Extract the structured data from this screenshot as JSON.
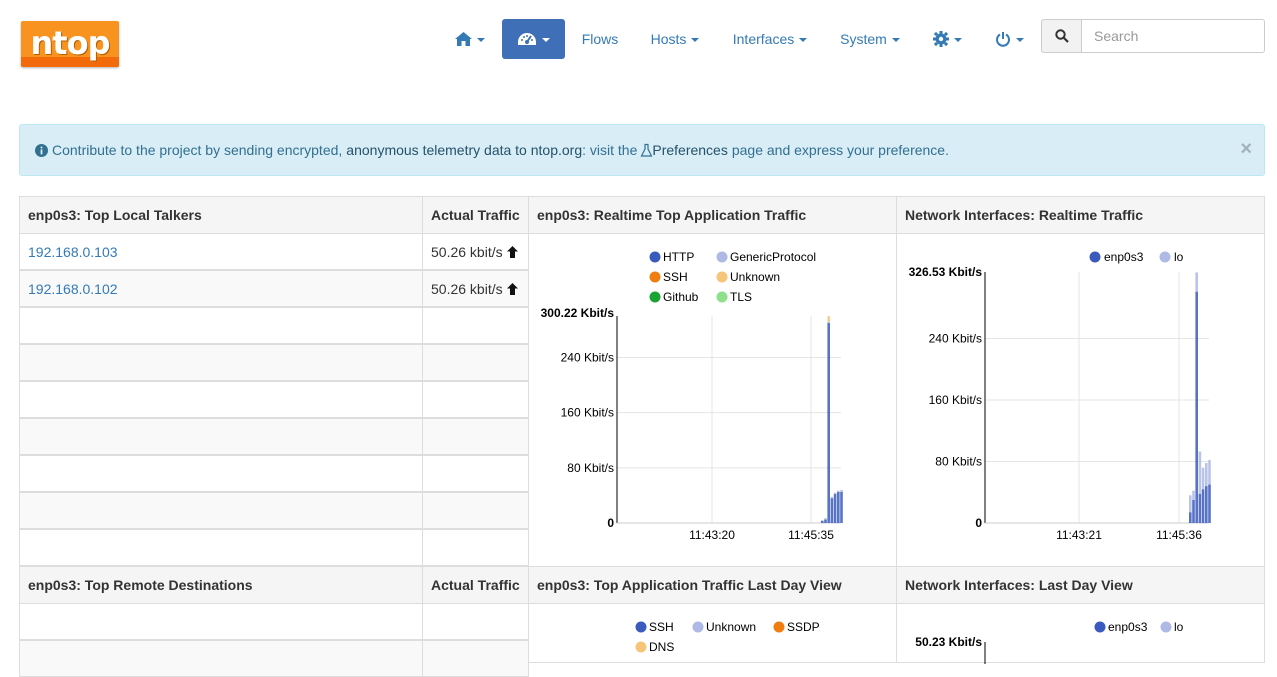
{
  "logo": {
    "text": "ntop"
  },
  "nav": {
    "flows": "Flows",
    "hosts": "Hosts",
    "interfaces": "Interfaces",
    "system": "System",
    "search_placeholder": "Search"
  },
  "alert": {
    "text_before": "Contribute to the project by sending encrypted,",
    "link1": "anonymous telemetry data to ntop.org",
    "text_mid": ": visit the",
    "link2": "Preferences",
    "text_after": "page and express your preference.",
    "close": "×"
  },
  "top_local": {
    "header": "enp0s3: Top Local Talkers",
    "traffic_header": "Actual Traffic",
    "rows": [
      {
        "host": "192.168.0.103",
        "traffic": "50.26 kbit/s"
      },
      {
        "host": "192.168.0.102",
        "traffic": "50.26 kbit/s"
      }
    ]
  },
  "top_remote": {
    "header": "enp0s3: Top Remote Destinations",
    "traffic_header": "Actual Traffic"
  },
  "app_realtime": {
    "header": "enp0s3: Realtime Top Application Traffic"
  },
  "iface_realtime": {
    "header": "Network Interfaces: Realtime Traffic"
  },
  "app_lastday": {
    "header": "enp0s3: Top Application Traffic Last Day View"
  },
  "iface_lastday": {
    "header": "Network Interfaces: Last Day View"
  },
  "chart_data": [
    {
      "type": "bar",
      "name": "app_realtime",
      "legend": [
        {
          "name": "HTTP",
          "color": "#3a5bbd"
        },
        {
          "name": "GenericProtocol",
          "color": "#aeb9e6"
        },
        {
          "name": "SSH",
          "color": "#f07d10"
        },
        {
          "name": "Unknown",
          "color": "#f7c57a"
        },
        {
          "name": "Github",
          "color": "#1aa332"
        },
        {
          "name": "TLS",
          "color": "#8ee08a"
        }
      ],
      "ylim": [
        0,
        300.22
      ],
      "yticks": [
        0,
        80,
        160,
        240
      ],
      "ytick_labels": [
        "0",
        "80 Kbit/s",
        "160 Kbit/s",
        "240 Kbit/s"
      ],
      "ymax_label": "300.22 Kbit/s",
      "xtick_labels": [
        "11:43:20",
        "11:45:35"
      ],
      "bars": [
        {
          "HTTP": 3,
          "GenericProtocol": 1
        },
        {
          "HTTP": 5,
          "GenericProtocol": 2
        },
        {
          "HTTP": 290,
          "GenericProtocol": 2,
          "Unknown": 8
        },
        {
          "HTTP": 36,
          "GenericProtocol": 2
        },
        {
          "HTTP": 42,
          "GenericProtocol": 2
        },
        {
          "HTTP": 45,
          "GenericProtocol": 2
        },
        {
          "HTTP": 45,
          "GenericProtocol": 3
        }
      ]
    },
    {
      "type": "bar",
      "name": "iface_realtime",
      "legend": [
        {
          "name": "enp0s3",
          "color": "#3a5bbd"
        },
        {
          "name": "lo",
          "color": "#aeb9e6"
        }
      ],
      "ylim": [
        0,
        326.53
      ],
      "yticks": [
        0,
        80,
        160,
        240
      ],
      "ytick_labels": [
        "0",
        "80 Kbit/s",
        "160 Kbit/s",
        "240 Kbit/s"
      ],
      "ymax_label": "326.53 Kbit/s",
      "xtick_labels": [
        "11:43:21",
        "11:45:36"
      ],
      "bars": [
        {
          "enp0s3": 14,
          "lo": 22
        },
        {
          "enp0s3": 30,
          "lo": 12
        },
        {
          "enp0s3": 301,
          "lo": 25
        },
        {
          "enp0s3": 38,
          "lo": 55
        },
        {
          "enp0s3": 44,
          "lo": 28
        },
        {
          "enp0s3": 48,
          "lo": 30
        },
        {
          "enp0s3": 50,
          "lo": 32
        }
      ]
    },
    {
      "type": "bar",
      "name": "app_lastday",
      "legend": [
        {
          "name": "SSH",
          "color": "#3a5bbd"
        },
        {
          "name": "Unknown",
          "color": "#aeb9e6"
        },
        {
          "name": "SSDP",
          "color": "#f07d10"
        },
        {
          "name": "DNS",
          "color": "#f7c57a"
        }
      ]
    },
    {
      "type": "bar",
      "name": "iface_lastday",
      "legend": [
        {
          "name": "enp0s3",
          "color": "#3a5bbd"
        },
        {
          "name": "lo",
          "color": "#aeb9e6"
        }
      ],
      "ymax_label": "50.23 Kbit/s"
    }
  ]
}
